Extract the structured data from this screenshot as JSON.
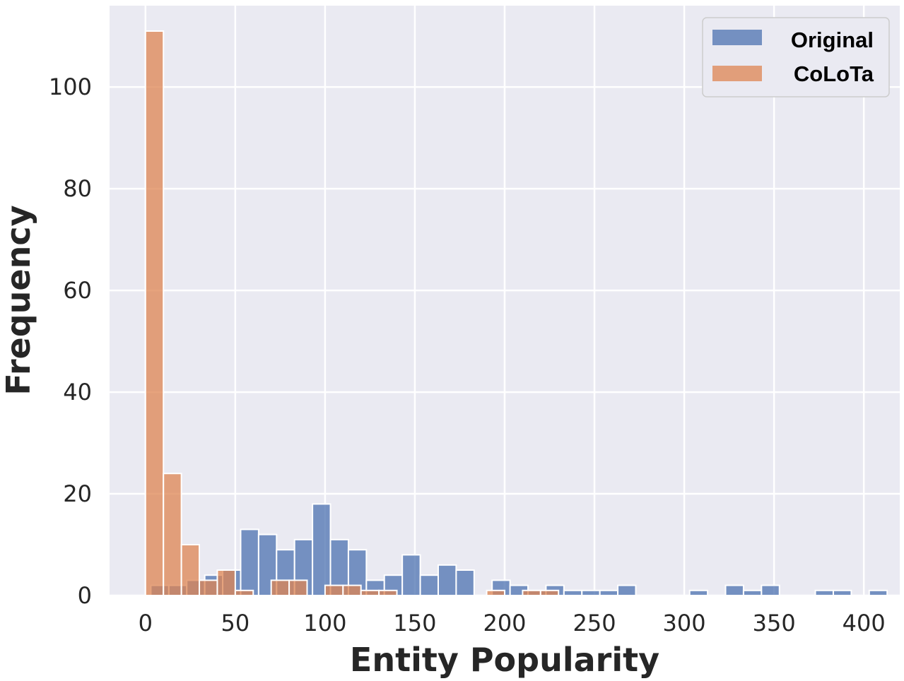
{
  "chart_data": {
    "type": "bar",
    "subtype": "histogram",
    "xlabel": "Entity Popularity",
    "ylabel": "Frequency",
    "xlim": [
      -20,
      420
    ],
    "ylim": [
      0,
      116
    ],
    "x_ticks": [
      0,
      50,
      100,
      150,
      200,
      250,
      300,
      350,
      400
    ],
    "y_ticks": [
      0,
      20,
      40,
      60,
      80,
      100
    ],
    "grid": true,
    "legend_position": "top-right",
    "series": [
      {
        "name": "Original",
        "color": "#4c72b0",
        "bin_width": 10,
        "bins": [
          [
            3,
            2
          ],
          [
            13,
            2
          ],
          [
            23,
            3
          ],
          [
            33,
            4
          ],
          [
            43,
            5
          ],
          [
            53,
            13
          ],
          [
            63,
            12
          ],
          [
            73,
            9
          ],
          [
            83,
            11
          ],
          [
            93,
            18
          ],
          [
            103,
            11
          ],
          [
            113,
            9
          ],
          [
            123,
            3
          ],
          [
            133,
            4
          ],
          [
            143,
            8
          ],
          [
            153,
            4
          ],
          [
            163,
            6
          ],
          [
            173,
            5
          ],
          [
            193,
            3
          ],
          [
            203,
            2
          ],
          [
            213,
            1
          ],
          [
            223,
            2
          ],
          [
            233,
            1
          ],
          [
            243,
            1
          ],
          [
            253,
            1
          ],
          [
            263,
            2
          ],
          [
            303,
            1
          ],
          [
            323,
            2
          ],
          [
            333,
            1
          ],
          [
            343,
            2
          ],
          [
            373,
            1
          ],
          [
            383,
            1
          ],
          [
            403,
            1
          ]
        ]
      },
      {
        "name": "CoLoTa",
        "color": "#dd8452",
        "bin_width": 10,
        "bins": [
          [
            0,
            111
          ],
          [
            10,
            24
          ],
          [
            20,
            10
          ],
          [
            30,
            3
          ],
          [
            40,
            5
          ],
          [
            50,
            1
          ],
          [
            70,
            3
          ],
          [
            80,
            3
          ],
          [
            100,
            2
          ],
          [
            110,
            2
          ],
          [
            120,
            1
          ],
          [
            130,
            1
          ],
          [
            190,
            1
          ],
          [
            210,
            1
          ],
          [
            220,
            1
          ]
        ]
      }
    ]
  }
}
